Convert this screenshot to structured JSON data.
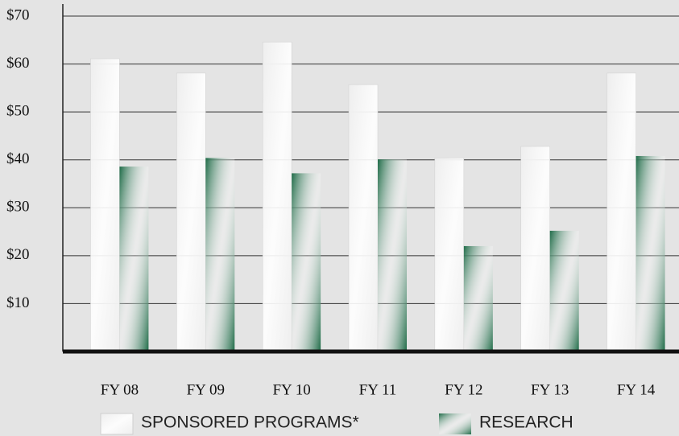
{
  "chart_data": {
    "type": "bar",
    "categories": [
      "FY 08",
      "FY 09",
      "FY 10",
      "FY 11",
      "FY 12",
      "FY 13",
      "FY 14"
    ],
    "series": [
      {
        "name": "SPONSORED PROGRAMS*",
        "color": "#eeeeee",
        "values": [
          61.1,
          58.1,
          64.6,
          55.7,
          40.4,
          42.8,
          58.1
        ]
      },
      {
        "name": "RESEARCH",
        "color": "#1e6b47",
        "values": [
          38.6,
          40.4,
          37.2,
          40.1,
          22.0,
          25.2,
          40.8
        ]
      }
    ],
    "ylim": [
      0,
      70
    ],
    "yticks": [
      {
        "value": 10,
        "label": "$10"
      },
      {
        "value": 20,
        "label": "$20"
      },
      {
        "value": 30,
        "label": "$30"
      },
      {
        "value": 40,
        "label": "$40"
      },
      {
        "value": 50,
        "label": "$50"
      },
      {
        "value": 60,
        "label": "$60"
      },
      {
        "value": 70,
        "label": "$70"
      }
    ],
    "grid": true
  }
}
